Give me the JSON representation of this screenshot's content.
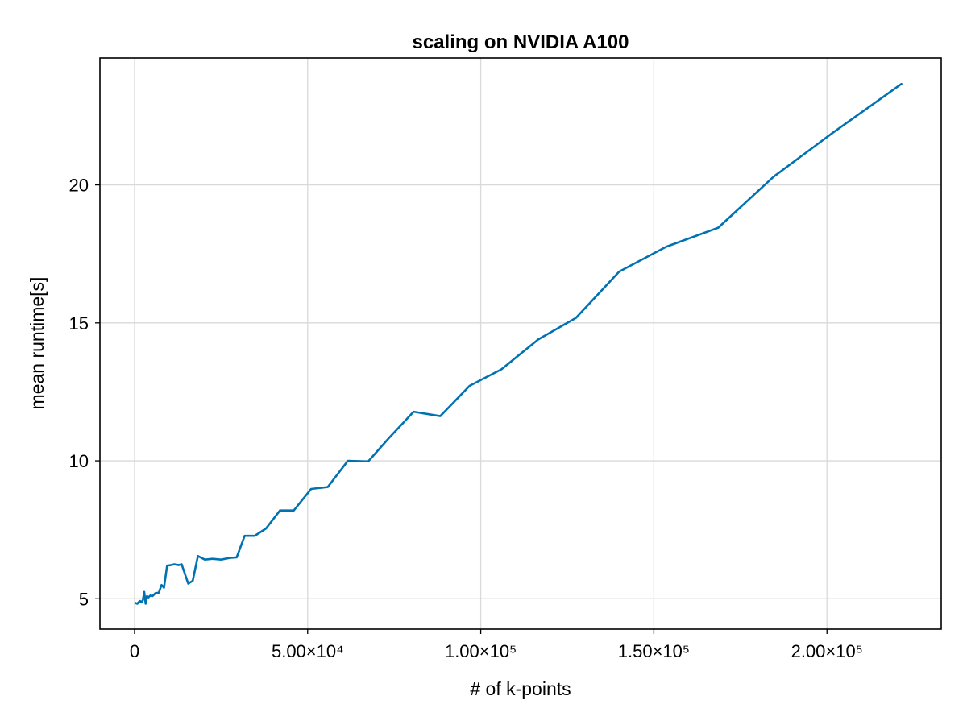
{
  "chart_data": {
    "type": "line",
    "title": "scaling on NVIDIA A100",
    "xlabel": "# of k-points",
    "ylabel": "mean runtime[s]",
    "xlim": [
      -10000,
      233000
    ],
    "ylim": [
      3.9,
      24.6
    ],
    "grid": true,
    "x_ticks": [
      {
        "value": 0,
        "label": "0"
      },
      {
        "value": 50000,
        "label": "5.00×10⁴"
      },
      {
        "value": 100000,
        "label": "1.00×10⁵"
      },
      {
        "value": 150000,
        "label": "1.50×10⁵"
      },
      {
        "value": 200000,
        "label": "2.00×10⁵"
      }
    ],
    "y_ticks": [
      {
        "value": 5,
        "label": "5"
      },
      {
        "value": 10,
        "label": "10"
      },
      {
        "value": 15,
        "label": "15"
      },
      {
        "value": 20,
        "label": "20"
      }
    ],
    "series": [
      {
        "color": "#0072b2",
        "x": [
          200,
          800,
          1200,
          1600,
          2000,
          2400,
          2800,
          3200,
          3600,
          4000,
          4600,
          5200,
          6000,
          7000,
          7800,
          8500,
          9400,
          10500,
          11500,
          12800,
          13600,
          15500,
          16800,
          18300,
          20300,
          22500,
          25000,
          27500,
          29500,
          31800,
          34700,
          38000,
          42000,
          46000,
          51000,
          55800,
          61600,
          67500,
          73300,
          80600,
          88300,
          96800,
          106000,
          116600,
          127500,
          140000,
          153600,
          168600,
          184600,
          201800,
          221500
        ],
        "y": [
          4.85,
          4.82,
          4.88,
          4.92,
          4.87,
          4.95,
          5.25,
          4.82,
          5.1,
          5.05,
          5.12,
          5.1,
          5.2,
          5.22,
          5.5,
          5.4,
          6.2,
          6.22,
          6.25,
          6.22,
          6.25,
          5.55,
          5.65,
          6.55,
          6.42,
          6.45,
          6.42,
          6.48,
          6.5,
          7.28,
          7.28,
          7.55,
          8.2,
          8.2,
          8.98,
          9.05,
          10.0,
          9.98,
          10.8,
          11.78,
          11.62,
          12.72,
          13.32,
          14.4,
          15.18,
          16.86,
          17.76,
          18.45,
          20.3,
          21.9,
          23.66
        ]
      }
    ]
  }
}
